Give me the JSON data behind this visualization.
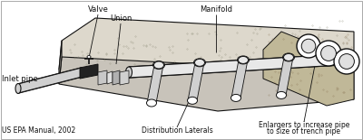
{
  "bg_color": "#ffffff",
  "text_color": "#111111",
  "line_color": "#111111",
  "white": "#ffffff",
  "fill_platform_top": "#ddd8cc",
  "fill_platform_front": "#c8c3ba",
  "fill_platform_left": "#b8b3aa",
  "fill_ground": "#c0b898",
  "fill_ground_dark": "#a89878",
  "fill_pipe_gray": "#d0d0d0",
  "fill_pipe_light": "#e8e8e8",
  "fill_pipe_dark": "#aaaaaa",
  "fill_valve": "#222222",
  "caption_epa": "US EPA Manual, 2002",
  "caption_dist": "Distribution Laterals",
  "caption_enl1": "Enlargers to increase pipe",
  "caption_enl2": "to size of trench pipe",
  "label_inlet": "Inlet pipe",
  "label_valve": "Valve",
  "label_union": "Union",
  "label_manifold": "Manifold"
}
